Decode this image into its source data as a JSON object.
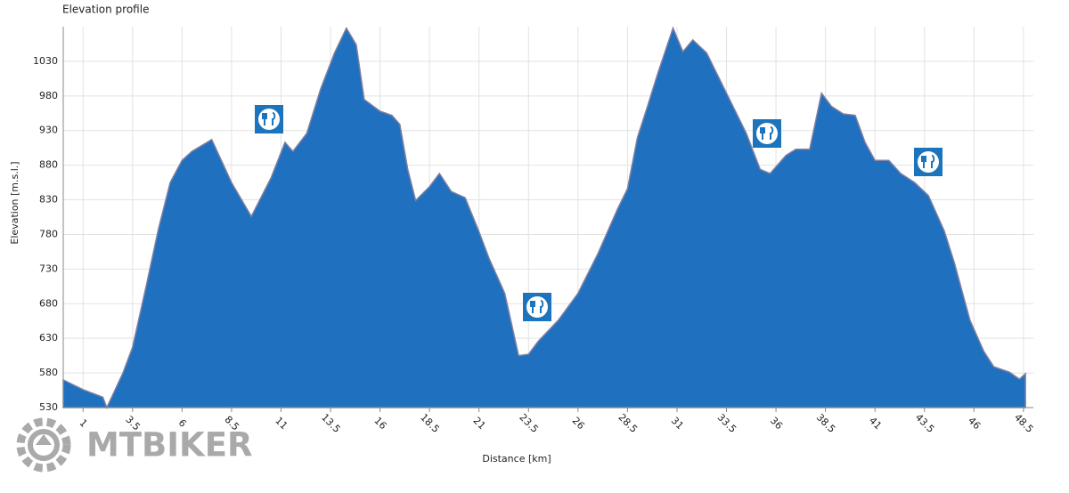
{
  "chart_data": {
    "type": "area",
    "title": "Elevation profile",
    "xlabel": "Distance [km]",
    "ylabel": "Elevation [m.s.l.]",
    "watermark": "MTBIKER",
    "x": [
      0,
      1,
      2,
      2.2,
      3,
      3.5,
      4.2,
      4.8,
      5.4,
      6,
      6.5,
      7.5,
      8.5,
      9.5,
      10.5,
      11.2,
      11.6,
      12.3,
      13,
      13.7,
      14.3,
      14.8,
      15.2,
      16,
      16.6,
      17,
      17.4,
      17.8,
      18.5,
      19,
      19.6,
      20.3,
      21,
      21.5,
      22.3,
      23,
      23.5,
      24,
      25,
      26,
      27,
      28,
      28.5,
      29,
      29.5,
      30,
      30.8,
      31.3,
      31.8,
      32.5,
      33.5,
      34.5,
      35.2,
      35.7,
      36.5,
      37,
      37.7,
      38.3,
      38.8,
      39.4,
      40,
      40.5,
      41,
      41.7,
      42.3,
      43,
      43.7,
      44.5,
      45,
      45.8,
      46.5,
      47,
      47.8,
      48.3,
      48.6
    ],
    "values": [
      570,
      556,
      545,
      530,
      579,
      617,
      707,
      787,
      855,
      887,
      900,
      917,
      855,
      806,
      862,
      913,
      900,
      926,
      990,
      1042,
      1078,
      1054,
      975,
      958,
      952,
      939,
      874,
      829,
      849,
      868,
      842,
      833,
      784,
      746,
      695,
      605,
      607,
      626,
      656,
      695,
      752,
      817,
      846,
      920,
      964,
      1010,
      1078,
      1044,
      1061,
      1042,
      984,
      926,
      874,
      868,
      894,
      903,
      903,
      984,
      965,
      954,
      952,
      913,
      887,
      887,
      868,
      855,
      836,
      785,
      740,
      656,
      611,
      589,
      581,
      571,
      579
    ],
    "color": "#2070c0",
    "line_color": "#8080a0",
    "xlim": [
      0,
      49
    ],
    "ylim": [
      530,
      1080
    ],
    "xticks": [
      1,
      3.5,
      6,
      8.5,
      11,
      13.5,
      16,
      18.5,
      21,
      23.5,
      26,
      28.5,
      31,
      33.5,
      36,
      38.5,
      41,
      43.5,
      46,
      48.5
    ],
    "yticks": [
      530,
      580,
      630,
      680,
      730,
      780,
      830,
      880,
      930,
      980,
      1030
    ],
    "grid": true
  }
}
